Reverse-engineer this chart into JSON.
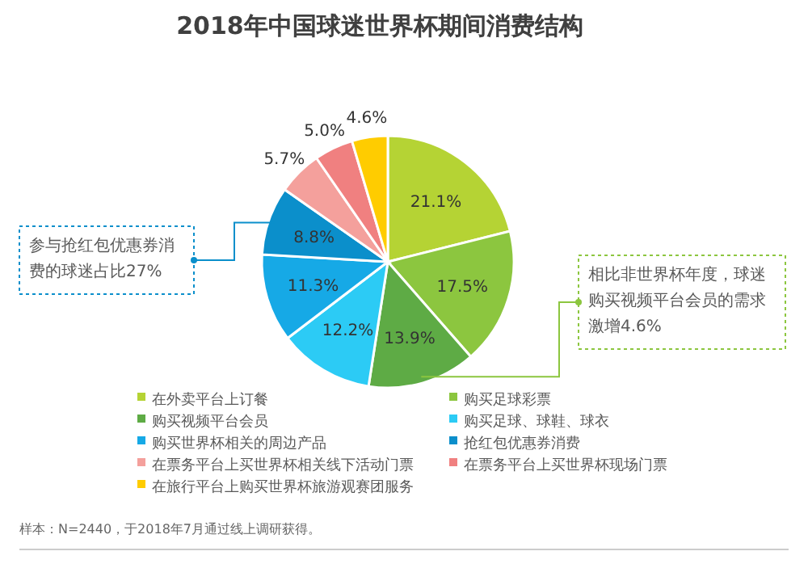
{
  "chart_data": {
    "type": "pie",
    "title": "2018年中国球迷世界杯期间消费结构",
    "categories": [
      "在外卖平台上订餐",
      "购买足球彩票",
      "购买视频平台会员",
      "购买足球、球鞋、球衣",
      "购买世界杯相关的周边产品",
      "抢红包优惠券消费",
      "在票务平台上买世界杯相关线下活动门票",
      "在票务平台上买世界杯现场门票",
      "在旅行平台上购买世界杯旅游观赛团服务"
    ],
    "values": [
      21.1,
      17.5,
      13.9,
      12.2,
      11.3,
      8.8,
      5.7,
      5.0,
      4.6
    ],
    "colors": [
      "#b5d334",
      "#8cc63f",
      "#5eab45",
      "#2ccbf5",
      "#16a9e6",
      "#0b8fcb",
      "#f4a09c",
      "#f08080",
      "#ffcc00"
    ],
    "value_labels": [
      "21.1%",
      "17.5%",
      "13.9%",
      "12.2%",
      "11.3%",
      "8.8%",
      "5.7%",
      "5.0%",
      "4.6%"
    ],
    "legend": "bottom",
    "annotations": [
      {
        "text": "参与抢红包优惠券消费的球迷占比27%",
        "x": "抢红包优惠券消费"
      },
      {
        "text": "相比非世界杯年度，球迷购买视频平台会员的需求激增4.6%",
        "x": "购买视频平台会员"
      },
      "样本：N=2440，于2018年7月通过线上调研获得。"
    ]
  }
}
